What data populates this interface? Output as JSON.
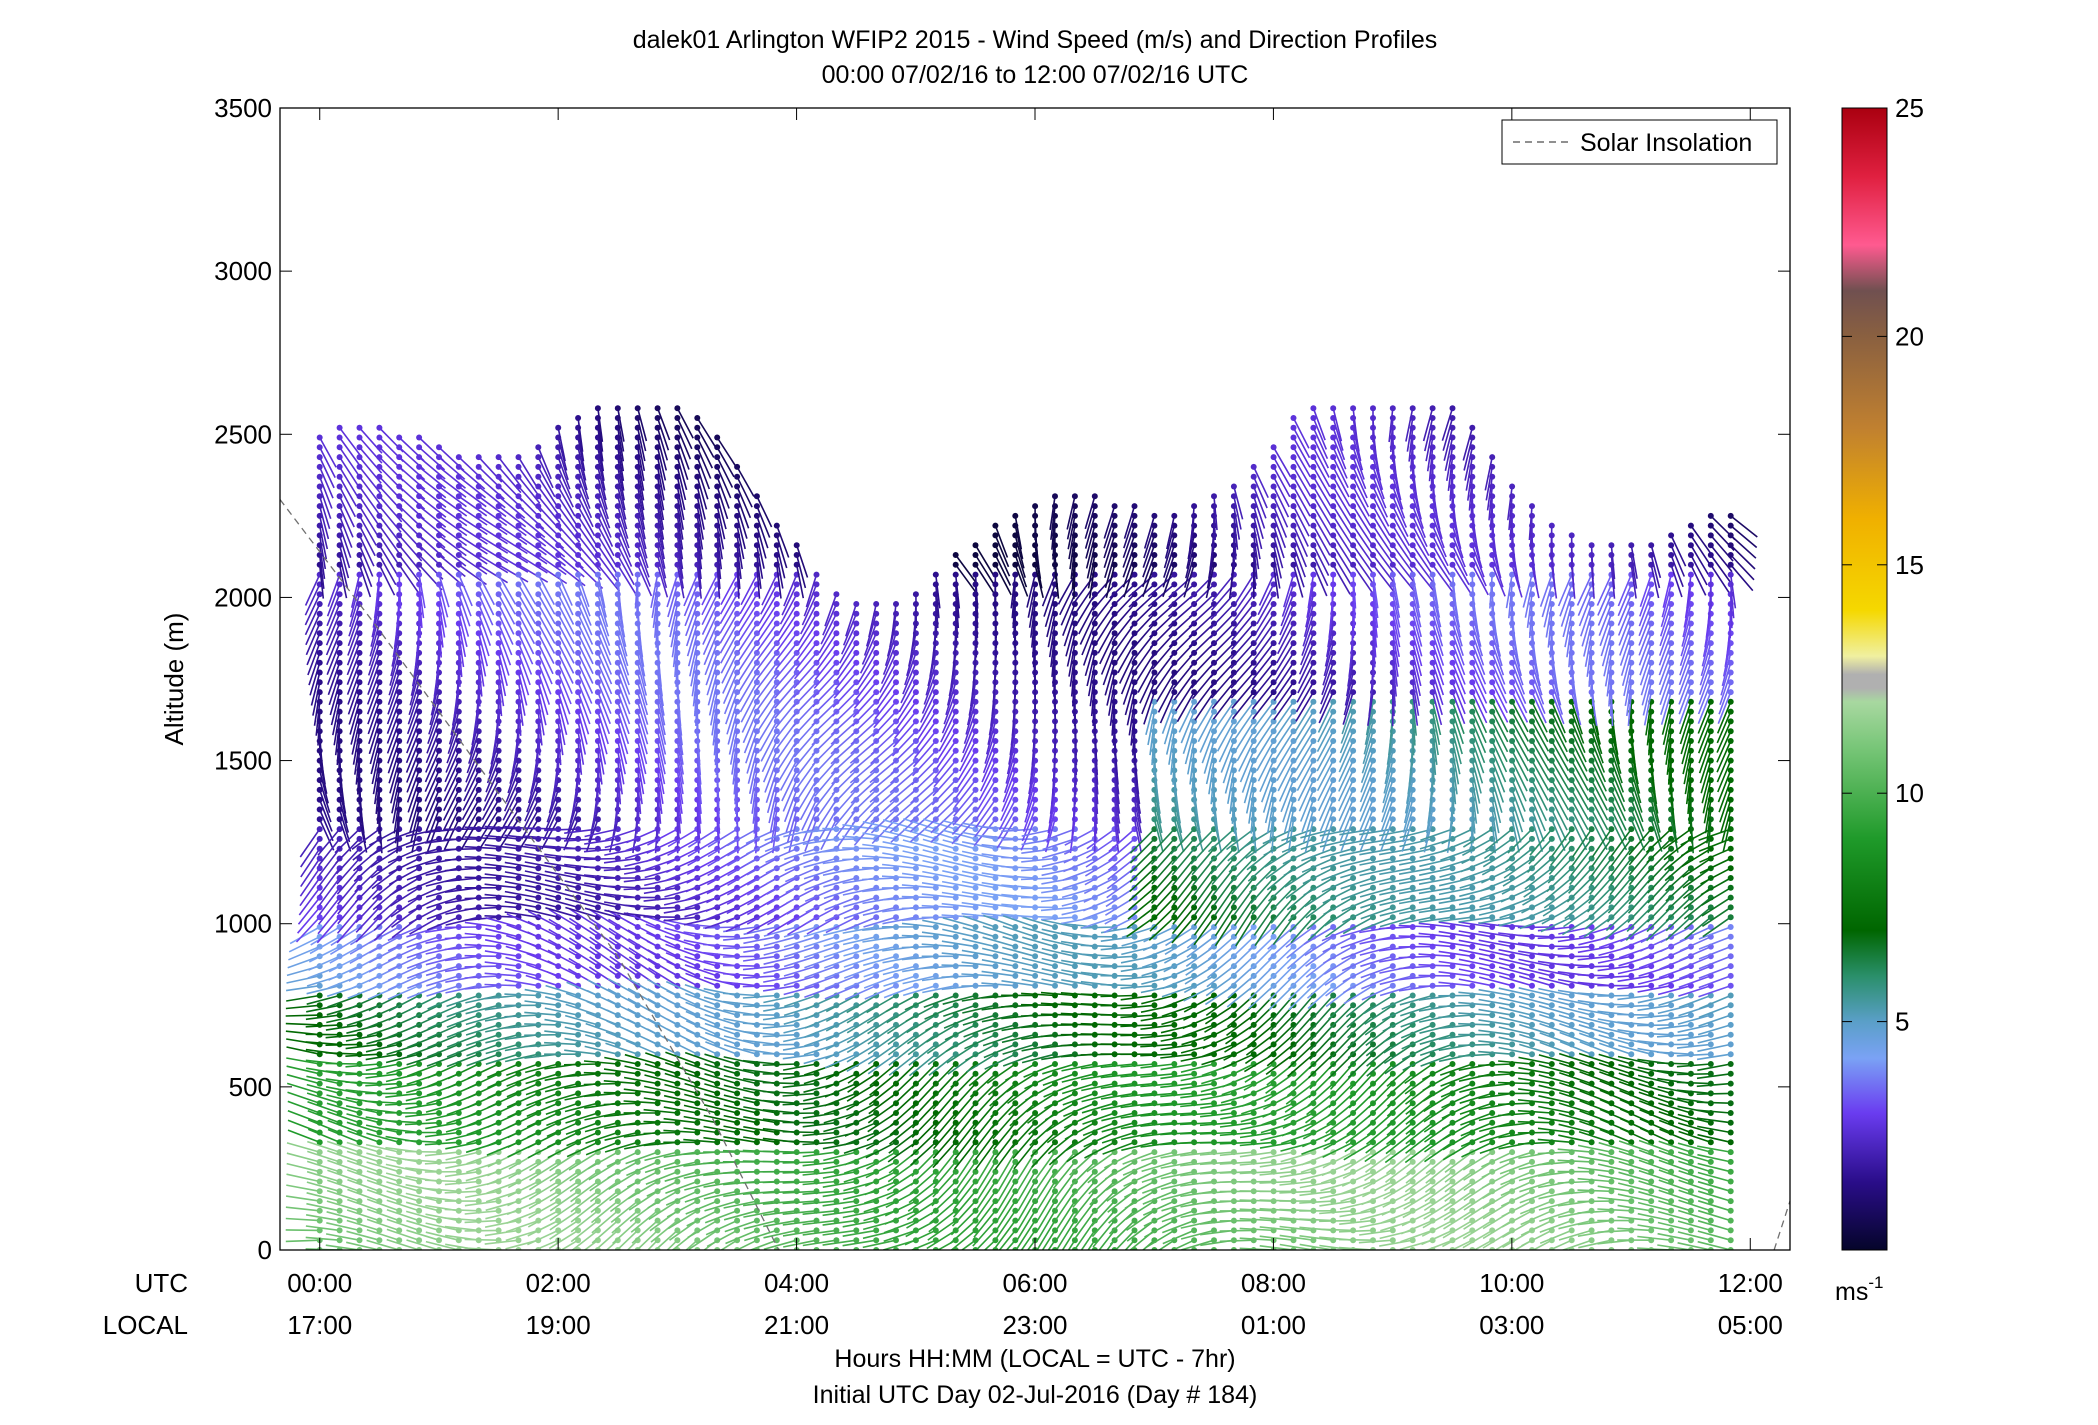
{
  "chart_data": {
    "type": "wind-barb-profile",
    "title": "dalek01 Arlington WFIP2 2015 - Wind Speed (m/s) and Direction Profiles",
    "subtitle": "00:00 07/02/16 to 12:00 07/02/16  UTC",
    "ylabel": "Altitude (m)",
    "xlabel": "Hours HH:MM  (LOCAL = UTC - 7hr)",
    "xlabel2": "Initial UTC Day 02-Jul-2016 (Day # 184)",
    "row_labels": {
      "utc": "UTC",
      "local": "LOCAL"
    },
    "xlim_hours": [
      -0.3333,
      12.3333
    ],
    "ylim": [
      0,
      3500
    ],
    "y_ticks": [
      0,
      500,
      1000,
      1500,
      2000,
      2500,
      3000,
      3500
    ],
    "y_tick_labels": [
      "0",
      "500",
      "1000",
      "1500",
      "2000",
      "2500",
      "3000",
      "3500"
    ],
    "x_ticks_hours": [
      0,
      2,
      4,
      6,
      8,
      10,
      12
    ],
    "x_tick_labels_utc": [
      "00:00",
      "02:00",
      "04:00",
      "06:00",
      "08:00",
      "10:00",
      "12:00"
    ],
    "x_tick_labels_local": [
      "17:00",
      "19:00",
      "21:00",
      "23:00",
      "01:00",
      "03:00",
      "05:00"
    ],
    "legend": {
      "label": "Solar Insolation",
      "position": "top-right",
      "style": "dashed",
      "color": "#909090"
    },
    "colorbar": {
      "range": [
        0,
        25
      ],
      "ticks": [
        5,
        10,
        15,
        20,
        25
      ],
      "tick_labels": [
        "5",
        "10",
        "15",
        "20",
        "25"
      ],
      "unit": "ms",
      "unit_sup": "-1",
      "stops": [
        {
          "v": 0,
          "c": "#05052a"
        },
        {
          "v": 1.5,
          "c": "#2a0d8a"
        },
        {
          "v": 3,
          "c": "#6a3cf0"
        },
        {
          "v": 4.2,
          "c": "#7aa2f5"
        },
        {
          "v": 5,
          "c": "#5a9fc8"
        },
        {
          "v": 6,
          "c": "#2a8f6a"
        },
        {
          "v": 7,
          "c": "#006600"
        },
        {
          "v": 9,
          "c": "#1f9a2a"
        },
        {
          "v": 11,
          "c": "#78c678"
        },
        {
          "v": 12,
          "c": "#a8d8a0"
        },
        {
          "v": 12.3,
          "c": "#b0b0b0"
        },
        {
          "v": 12.6,
          "c": "#b0b0b0"
        },
        {
          "v": 13,
          "c": "#f0f0a0"
        },
        {
          "v": 14,
          "c": "#f5d800"
        },
        {
          "v": 16,
          "c": "#f0b000"
        },
        {
          "v": 18,
          "c": "#c08030"
        },
        {
          "v": 20,
          "c": "#8a6040"
        },
        {
          "v": 21,
          "c": "#705050"
        },
        {
          "v": 22,
          "c": "#ff5a90"
        },
        {
          "v": 23.5,
          "c": "#e02040"
        },
        {
          "v": 25,
          "c": "#aa0010"
        }
      ]
    },
    "solar_insolation_curve": {
      "evening": [
        [
          -0.3333,
          2300
        ],
        [
          0.5,
          1900
        ],
        [
          1.5,
          1400
        ],
        [
          2.5,
          900
        ],
        [
          3.3,
          400
        ],
        [
          3.85,
          0
        ]
      ],
      "morning": [
        [
          12.2,
          0
        ],
        [
          12.3333,
          150
        ]
      ]
    },
    "profiles": {
      "time_step_hours": 0.1667,
      "t_start": 0,
      "t_end": 12,
      "z_step_m": 30,
      "z_start_m": 0,
      "layers": [
        {
          "z_min": 0,
          "z_max": 320,
          "speed": 10.5,
          "dir_deg": 250,
          "note": "light green near surface"
        },
        {
          "z_min": 320,
          "z_max": 600,
          "speed": 8.0,
          "dir_deg": 255
        },
        {
          "z_min": 600,
          "z_max": 800,
          "speed": 6.0,
          "dir_deg": 260
        },
        {
          "z_min": 800,
          "z_max": 1000,
          "speed": 4.0,
          "dir_deg": 265
        },
        {
          "z_min": 1000,
          "z_max": 1300,
          "speed": 3.0,
          "dir_deg": 250
        },
        {
          "z_min": 1300,
          "z_max": 2100,
          "speed": 2.5,
          "dir_deg": 190
        },
        {
          "z_min": 2100,
          "z_max": 2600,
          "speed": 1.5,
          "dir_deg": 160
        }
      ]
    }
  }
}
